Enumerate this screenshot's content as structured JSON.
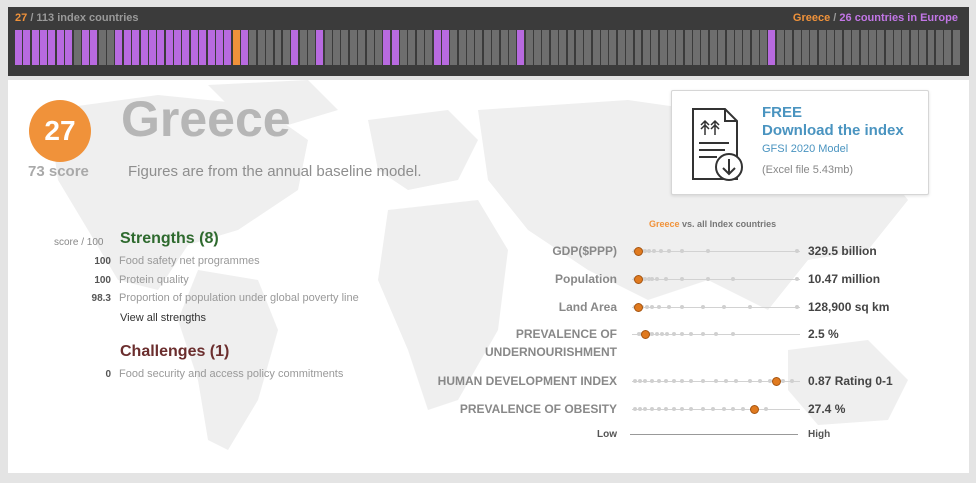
{
  "header": {
    "rank": "27",
    "rank_suffix": "/ 113 index countries",
    "country": "Greece",
    "region_sep": "/",
    "region_text": "26 countries in Europe",
    "bar_colors": {
      "highlight": "#f0923a",
      "region": "#b86ae0",
      "other": "#6e6e6e"
    },
    "bar_total": 113,
    "highlight_index": 26,
    "region_indices": [
      0,
      1,
      2,
      3,
      4,
      5,
      6,
      8,
      9,
      12,
      13,
      14,
      15,
      16,
      17,
      18,
      19,
      20,
      21,
      22,
      23,
      24,
      25,
      26,
      27,
      33,
      36,
      44,
      45,
      50,
      51,
      60,
      90
    ]
  },
  "profile": {
    "rank": "27",
    "score_label": "73 score",
    "country": "Greece",
    "note": "Figures are from the annual baseline model."
  },
  "download": {
    "icon": "spreadsheet-download-icon",
    "free_label": "FREE",
    "title": "Download the index",
    "model": "GFSI 2020 Model",
    "size": "(Excel file 5.43mb)"
  },
  "strengths": {
    "score_header": "score / 100",
    "title": "Strengths (8)",
    "items": [
      {
        "value": "100",
        "label": "Food safety net programmes"
      },
      {
        "value": "100",
        "label": "Protein quality"
      },
      {
        "value": "98.3",
        "label": "Proportion of population under global poverty line"
      }
    ],
    "view_all": "View all strengths"
  },
  "challenges": {
    "title": "Challenges (1)",
    "items": [
      {
        "value": "0",
        "label": "Food security and access policy commitments"
      }
    ]
  },
  "comparison": {
    "header_country": "Greece",
    "header_rest": "vs. all Index countries",
    "marker_color": "#e07a1f",
    "metrics": [
      {
        "label": "GDP($PPP)",
        "value": "329.5 billion",
        "position": 0.04
      },
      {
        "label": "Population",
        "value": "10.47 million",
        "position": 0.04
      },
      {
        "label": "Land Area",
        "value": "128,900 sq km",
        "position": 0.04
      },
      {
        "label": "PREVALENCE OF UNDERNOURISHMENT",
        "label_line1": "PREVALENCE OF",
        "label_line2": "UNDERNOURISHMENT",
        "value": "2.5 %",
        "position": 0.08
      },
      {
        "label": "HUMAN DEVELOPMENT INDEX",
        "value": "0.87 Rating 0-1",
        "position": 0.86
      },
      {
        "label": "PREVALENCE OF OBESITY",
        "value": "27.4 %",
        "position": 0.73
      }
    ],
    "scale_low": "Low",
    "scale_high": "High"
  }
}
